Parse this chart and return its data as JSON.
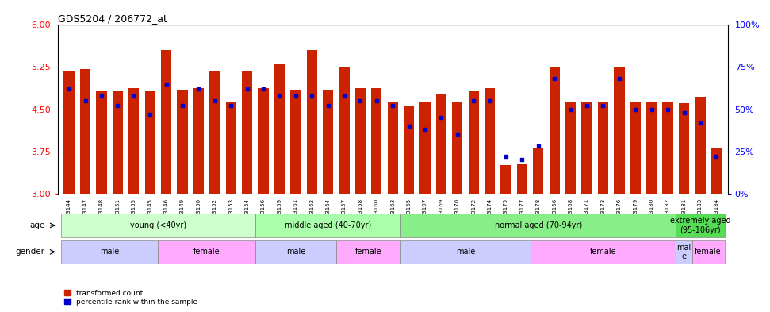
{
  "title": "GDS5204 / 206772_at",
  "samples": [
    "GSM1303144",
    "GSM1303147",
    "GSM1303148",
    "GSM1303151",
    "GSM1303155",
    "GSM1303145",
    "GSM1303146",
    "GSM1303149",
    "GSM1303150",
    "GSM1303152",
    "GSM1303153",
    "GSM1303154",
    "GSM1303156",
    "GSM1303159",
    "GSM1303161",
    "GSM1303162",
    "GSM1303164",
    "GSM1303157",
    "GSM1303158",
    "GSM1303160",
    "GSM1303163",
    "GSM1303165",
    "GSM1303167",
    "GSM1303169",
    "GSM1303170",
    "GSM1303172",
    "GSM1303174",
    "GSM1303175",
    "GSM1303177",
    "GSM1303178",
    "GSM1303166",
    "GSM1303168",
    "GSM1303171",
    "GSM1303173",
    "GSM1303176",
    "GSM1303179",
    "GSM1303180",
    "GSM1303182",
    "GSM1303181",
    "GSM1303183",
    "GSM1303184"
  ],
  "bar_values": [
    5.18,
    5.22,
    4.82,
    4.82,
    4.87,
    4.83,
    5.55,
    4.84,
    4.87,
    5.18,
    4.62,
    5.18,
    4.88,
    5.32,
    4.84,
    5.55,
    4.84,
    5.25,
    4.87,
    4.87,
    4.63,
    4.57,
    4.62,
    4.78,
    4.62,
    4.83,
    4.87,
    3.5,
    3.52,
    3.8,
    5.25,
    4.63,
    4.63,
    4.63,
    5.25,
    4.63,
    4.63,
    4.63,
    4.6,
    4.72,
    3.82
  ],
  "percentile_values": [
    62,
    55,
    58,
    52,
    58,
    47,
    65,
    52,
    62,
    55,
    52,
    62,
    62,
    58,
    58,
    58,
    52,
    58,
    55,
    55,
    52,
    40,
    38,
    45,
    35,
    55,
    55,
    22,
    20,
    28,
    68,
    50,
    52,
    52,
    68,
    50,
    50,
    50,
    48,
    42,
    22
  ],
  "ymin": 3.0,
  "ymax": 6.0,
  "yticks_left": [
    3.0,
    3.75,
    4.5,
    5.25,
    6.0
  ],
  "yticks_right": [
    0,
    25,
    50,
    75,
    100
  ],
  "hlines": [
    3.75,
    4.5,
    5.25
  ],
  "bar_color": "#CC2200",
  "dot_color": "#0000CC",
  "age_groups": [
    {
      "label": "young (<40yr)",
      "start": 0,
      "end": 11,
      "color": "#CCFFCC"
    },
    {
      "label": "middle aged (40-70yr)",
      "start": 12,
      "end": 20,
      "color": "#AAFFAA"
    },
    {
      "label": "normal aged (70-94yr)",
      "start": 21,
      "end": 37,
      "color": "#88EE88"
    },
    {
      "label": "extremely aged\n(95-106yr)",
      "start": 38,
      "end": 40,
      "color": "#55DD55"
    }
  ],
  "gender_groups": [
    {
      "label": "male",
      "start": 0,
      "end": 5,
      "color": "#CCCCFF"
    },
    {
      "label": "female",
      "start": 6,
      "end": 11,
      "color": "#FFAAFF"
    },
    {
      "label": "male",
      "start": 12,
      "end": 16,
      "color": "#CCCCFF"
    },
    {
      "label": "female",
      "start": 17,
      "end": 20,
      "color": "#FFAAFF"
    },
    {
      "label": "male",
      "start": 21,
      "end": 28,
      "color": "#CCCCFF"
    },
    {
      "label": "female",
      "start": 29,
      "end": 37,
      "color": "#FFAAFF"
    },
    {
      "label": "male",
      "start": 38,
      "end": 38,
      "color": "#CCCCFF"
    },
    {
      "label": "female",
      "start": 39,
      "end": 40,
      "color": "#FFAAFF"
    }
  ],
  "legend_items": [
    {
      "label": "transformed count",
      "color": "#CC2200"
    },
    {
      "label": "percentile rank within the sample",
      "color": "#0000CC"
    }
  ]
}
